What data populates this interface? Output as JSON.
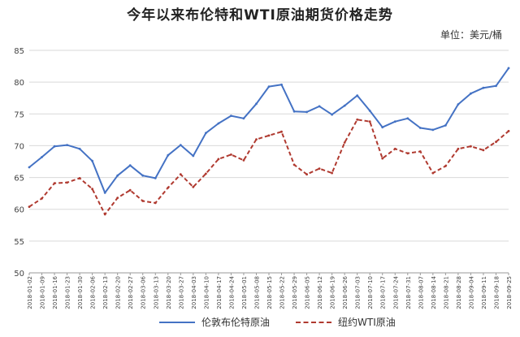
{
  "chart_data": {
    "type": "line",
    "title": "今年以来布伦特和WTI原油期货价格走势",
    "unit_label": "单位：美元/桶",
    "ylim": [
      50,
      85
    ],
    "yticks": [
      50,
      55,
      60,
      65,
      70,
      75,
      80,
      85
    ],
    "grid": "horizontal",
    "legend_position": "bottom",
    "x": [
      "2018-01-02",
      "2018-01-09",
      "2018-01-16",
      "2018-01-23",
      "2018-01-30",
      "2018-02-06",
      "2018-02-13",
      "2018-02-20",
      "2018-02-27",
      "2018-03-06",
      "2018-03-13",
      "2018-03-20",
      "2018-03-27",
      "2018-04-03",
      "2018-04-10",
      "2018-04-17",
      "2018-04-24",
      "2018-05-01",
      "2018-05-08",
      "2018-05-15",
      "2018-05-22",
      "2018-05-29",
      "2018-06-05",
      "2018-06-12",
      "2018-06-19",
      "2018-06-26",
      "2018-07-03",
      "2018-07-10",
      "2018-07-17",
      "2018-07-24",
      "2018-07-31",
      "2018-08-07",
      "2018-08-14",
      "2018-08-21",
      "2018-08-28",
      "2018-09-04",
      "2018-09-11",
      "2018-09-18",
      "2018-09-25"
    ],
    "series": [
      {
        "name": "伦敦布伦特原油",
        "color": "#4472c4",
        "style": "solid",
        "values": [
          66.6,
          68.2,
          69.9,
          70.1,
          69.5,
          67.6,
          62.6,
          65.3,
          66.9,
          65.3,
          64.9,
          68.5,
          70.1,
          68.4,
          72.0,
          73.5,
          74.7,
          74.3,
          76.6,
          79.3,
          79.6,
          75.4,
          75.3,
          76.2,
          74.9,
          76.3,
          77.9,
          75.5,
          72.9,
          73.8,
          74.3,
          72.8,
          72.5,
          73.2,
          76.5,
          78.2,
          79.1,
          79.4,
          82.2
        ]
      },
      {
        "name": "纽约WTI原油",
        "color": "#b03a30",
        "style": "dashed",
        "values": [
          60.4,
          61.7,
          64.1,
          64.2,
          64.9,
          63.2,
          59.2,
          61.8,
          63.0,
          61.3,
          61.0,
          63.4,
          65.5,
          63.5,
          65.6,
          67.9,
          68.6,
          67.7,
          71.0,
          71.6,
          72.2,
          67.0,
          65.5,
          66.4,
          65.7,
          70.5,
          74.1,
          73.8,
          68.0,
          69.5,
          68.8,
          69.1,
          65.7,
          66.8,
          69.5,
          69.9,
          69.3,
          70.6,
          72.3
        ]
      }
    ]
  }
}
